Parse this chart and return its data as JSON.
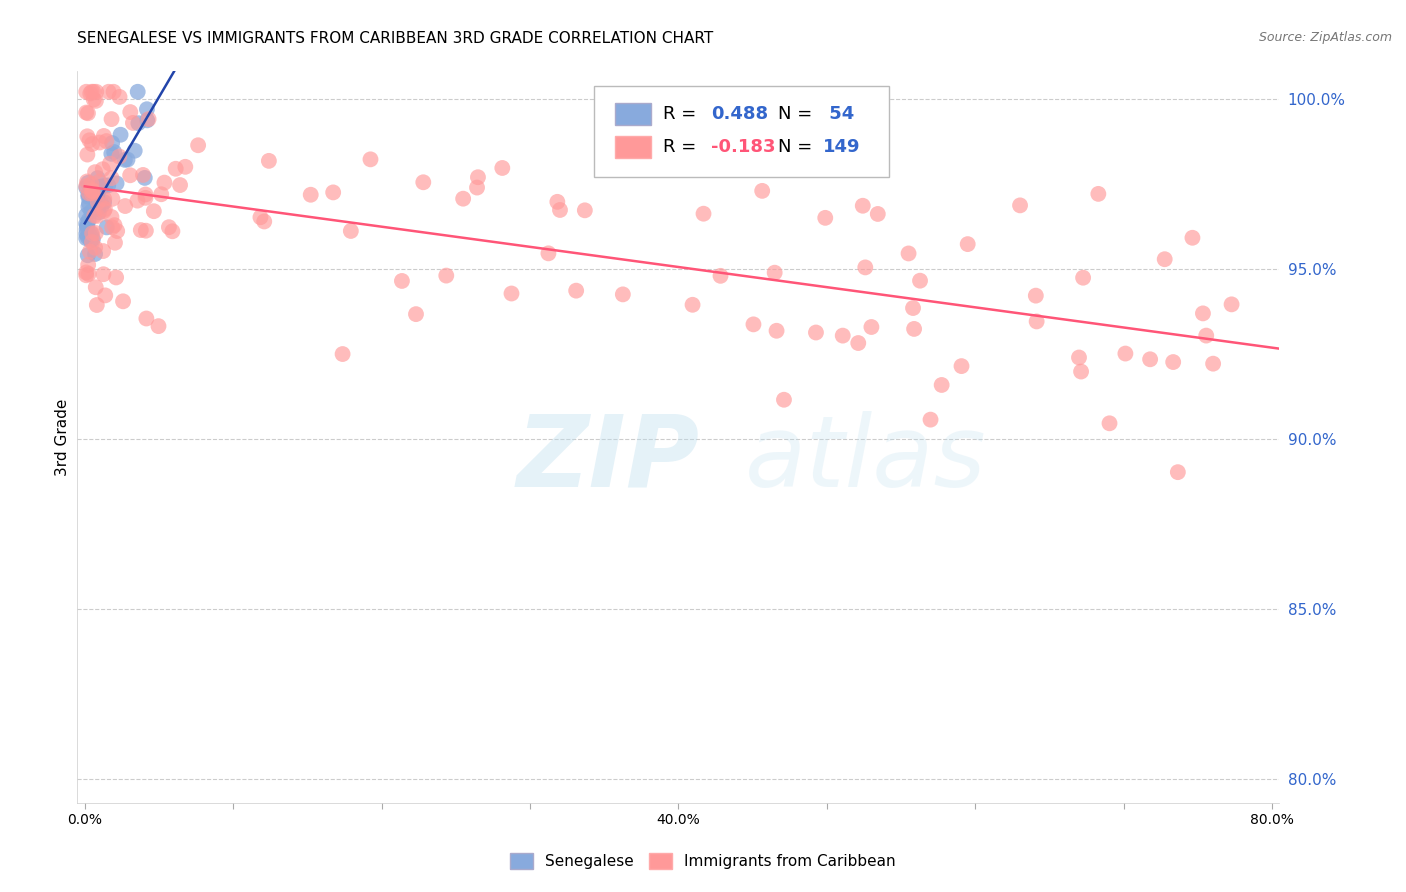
{
  "title": "SENEGALESE VS IMMIGRANTS FROM CARIBBEAN 3RD GRADE CORRELATION CHART",
  "source": "Source: ZipAtlas.com",
  "ylabel": "3rd Grade",
  "r_senegalese": 0.488,
  "n_senegalese": 54,
  "r_caribbean": -0.183,
  "n_caribbean": 149,
  "xlim": [
    -0.005,
    0.805
  ],
  "ylim": [
    0.793,
    1.008
  ],
  "xticks": [
    0.0,
    0.1,
    0.2,
    0.3,
    0.4,
    0.5,
    0.6,
    0.7,
    0.8
  ],
  "yticks": [
    0.8,
    0.85,
    0.9,
    0.95,
    1.0
  ],
  "ytick_labels": [
    "80.0%",
    "85.0%",
    "90.0%",
    "95.0%",
    "100.0%"
  ],
  "xtick_labels": [
    "0.0%",
    "",
    "",
    "",
    "40.0%",
    "",
    "",
    "",
    "80.0%"
  ],
  "color_blue": "#88AADD",
  "color_pink": "#FF9999",
  "color_blue_line": "#2244AA",
  "color_pink_line": "#FF5577",
  "color_axis_right": "#3366CC",
  "grid_color": "#CCCCCC",
  "background_color": "#FFFFFF",
  "seed": 42
}
